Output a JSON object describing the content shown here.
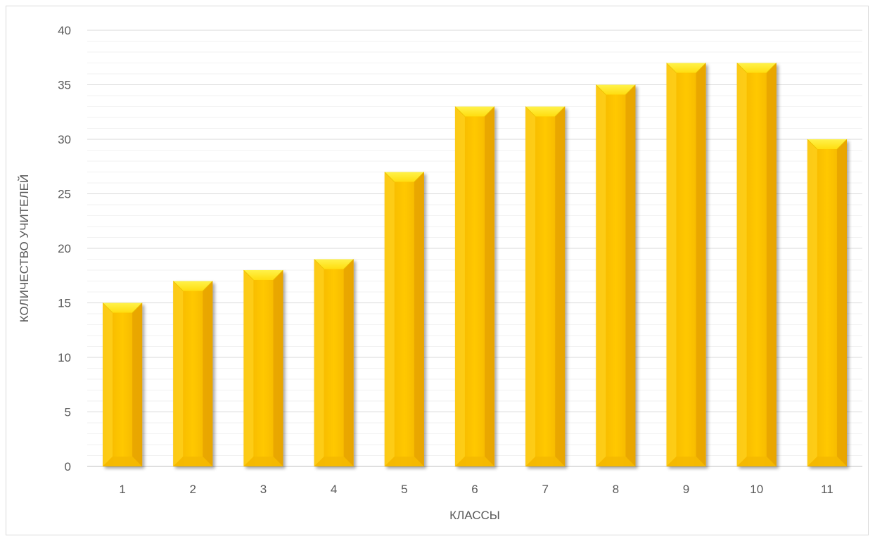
{
  "chart_data": {
    "type": "bar",
    "title": "",
    "xlabel": "КЛАССЫ",
    "ylabel": "КОЛИЧЕСТВО УЧИТЕЛЕЙ",
    "categories": [
      "1",
      "2",
      "3",
      "4",
      "5",
      "6",
      "7",
      "8",
      "9",
      "10",
      "11"
    ],
    "values": [
      15,
      17,
      18,
      19,
      27,
      33,
      33,
      35,
      37,
      37,
      30
    ],
    "ylim": [
      0,
      40
    ],
    "y_ticks": [
      0,
      5,
      10,
      15,
      20,
      25,
      30,
      35,
      40
    ],
    "grid": true,
    "minor_grid": true,
    "legend": "none",
    "bar_color": "#FFC000"
  }
}
